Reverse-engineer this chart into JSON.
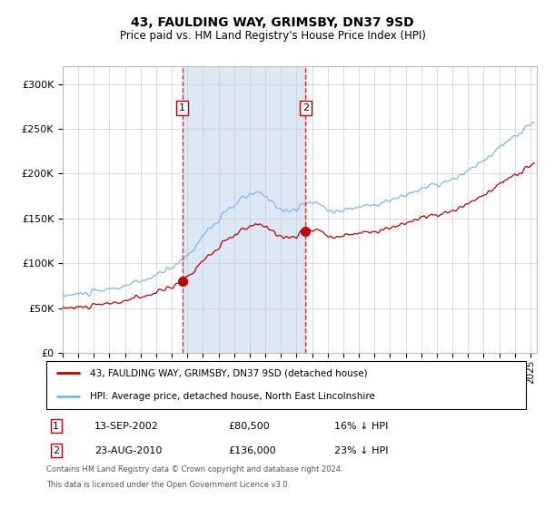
{
  "title": "43, FAULDING WAY, GRIMSBY, DN37 9SD",
  "subtitle": "Price paid vs. HM Land Registry's House Price Index (HPI)",
  "ylim": [
    0,
    320000
  ],
  "yticks": [
    0,
    50000,
    100000,
    150000,
    200000,
    250000,
    300000
  ],
  "ytick_labels": [
    "£0",
    "£50K",
    "£100K",
    "£150K",
    "£200K",
    "£250K",
    "£300K"
  ],
  "purchase1_date": "2002-09-13",
  "purchase1_price": 80500,
  "purchase1_label": "1",
  "purchase2_date": "2010-08-23",
  "purchase2_price": 136000,
  "purchase2_label": "2",
  "hpi_line_color": "#7EB6E8",
  "price_line_color": "#C00000",
  "marker_color": "#C00000",
  "dashed_line_color": "#FF0000",
  "shade_color": "#DCE9F5",
  "legend1": "43, FAULDING WAY, GRIMSBY, DN37 9SD (detached house)",
  "legend2": "HPI: Average price, detached house, North East Lincolnshire",
  "table_row1_num": "1",
  "table_row1_date": "13-SEP-2002",
  "table_row1_price": "£80,500",
  "table_row1_hpi": "16% ↓ HPI",
  "table_row2_num": "2",
  "table_row2_date": "23-AUG-2010",
  "table_row2_price": "£136,000",
  "table_row2_hpi": "23% ↓ HPI",
  "footnote1": "Contains HM Land Registry data © Crown copyright and database right 2024.",
  "footnote2": "This data is licensed under the Open Government Licence v3.0.",
  "background_color": "#FFFFFF",
  "grid_color": "#CCCCCC"
}
